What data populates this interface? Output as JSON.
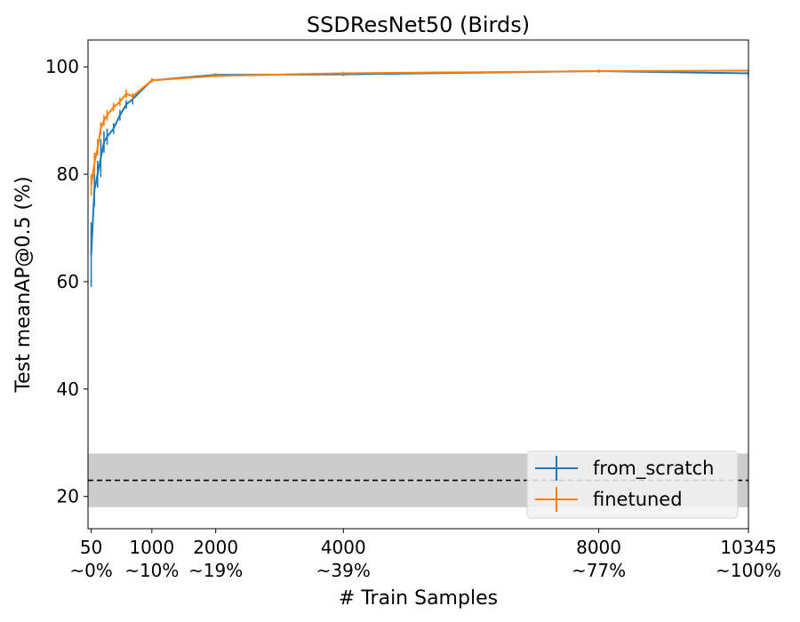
{
  "chart_data": {
    "type": "line",
    "title": "SSDResNet50 (Birds)",
    "xlabel": "# Train Samples",
    "ylabel": "Test meanAP@0.5 (%)",
    "xlim": [
      0,
      10345
    ],
    "ylim": [
      14,
      105
    ],
    "x_ticks": [
      {
        "value": 50,
        "label": "50",
        "sublabel": "~0%"
      },
      {
        "value": 1000,
        "label": "1000",
        "sublabel": "~10%"
      },
      {
        "value": 2000,
        "label": "2000",
        "sublabel": "~19%"
      },
      {
        "value": 4000,
        "label": "4000",
        "sublabel": "~39%"
      },
      {
        "value": 8000,
        "label": "8000",
        "sublabel": "~77%"
      },
      {
        "value": 10345,
        "label": "10345",
        "sublabel": "~100%"
      }
    ],
    "y_ticks": [
      20,
      40,
      60,
      80,
      100
    ],
    "y_tick_labels": [
      "20",
      "40",
      "60",
      "80",
      "100"
    ],
    "series": [
      {
        "name": "from_scratch",
        "color": "#1f77b4",
        "x": [
          50,
          100,
          150,
          200,
          250,
          300,
          400,
          500,
          600,
          700,
          1000,
          2000,
          4000,
          8000,
          10345
        ],
        "y": [
          65,
          77,
          80,
          83,
          86,
          87,
          88.5,
          91,
          93,
          94,
          97.5,
          98.5,
          98.6,
          99.2,
          98.8
        ],
        "err": [
          6,
          3,
          2.5,
          3.5,
          2,
          1.5,
          1,
          1,
          0.8,
          1,
          0.4,
          0.3,
          0.3,
          0.3,
          0.5
        ]
      },
      {
        "name": "finetuned",
        "color": "#ff7f0e",
        "x": [
          50,
          100,
          150,
          200,
          250,
          300,
          400,
          500,
          600,
          700,
          1000,
          2000,
          4000,
          8000,
          10345
        ],
        "y": [
          78,
          82,
          85,
          88.5,
          90,
          91,
          92.5,
          93.5,
          95,
          94.5,
          97.5,
          98.3,
          98.8,
          99.2,
          99.3
        ],
        "err": [
          2,
          2,
          1.5,
          1.2,
          1,
          1,
          0.8,
          0.8,
          0.8,
          0.6,
          0.4,
          0.3,
          0.3,
          0.3,
          0.3
        ]
      }
    ],
    "baseline": {
      "value": 23,
      "band": [
        18,
        28
      ],
      "band_color": "#cccccc",
      "line_style": "dashed"
    },
    "legend_position": "lower-right",
    "grid": false
  }
}
